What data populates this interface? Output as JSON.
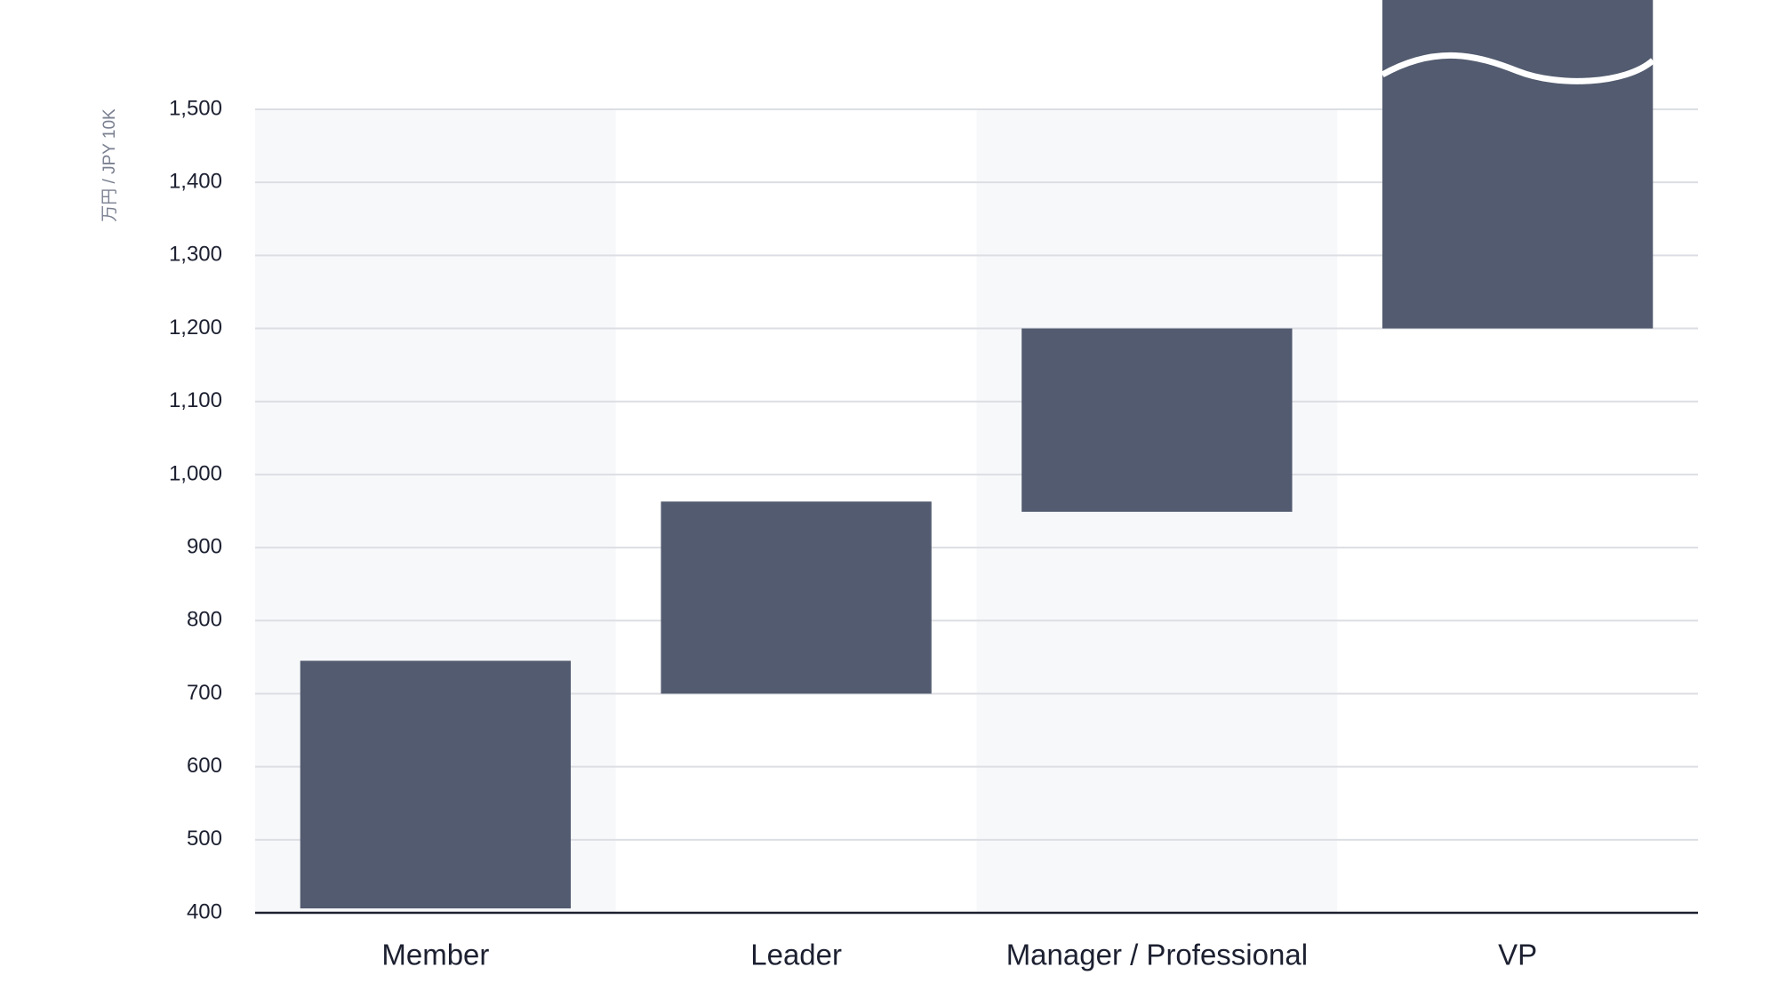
{
  "chart_data": {
    "type": "floating_bar",
    "y_axis_label": "万円 / JPY 10K",
    "categories": [
      "Member",
      "Leader",
      "Manager / Professional",
      "VP"
    ],
    "low": [
      406,
      700,
      949,
      1200
    ],
    "high": [
      745,
      963,
      1200,
      1650
    ],
    "color": "#525b6f",
    "ylim": [
      400,
      1500
    ],
    "yticks": [
      400,
      500,
      600,
      700,
      800,
      900,
      {
        "value": 1000,
        "label": "1,000"
      },
      {
        "value": 1100,
        "label": "1,100"
      },
      {
        "value": 1200,
        "label": "1,200"
      },
      {
        "value": 1300,
        "label": "1,300"
      },
      {
        "value": 1400,
        "label": "1,400"
      },
      {
        "value": 1500,
        "label": "1,500"
      }
    ],
    "grid": true,
    "axis_break_above_ylim": true
  }
}
